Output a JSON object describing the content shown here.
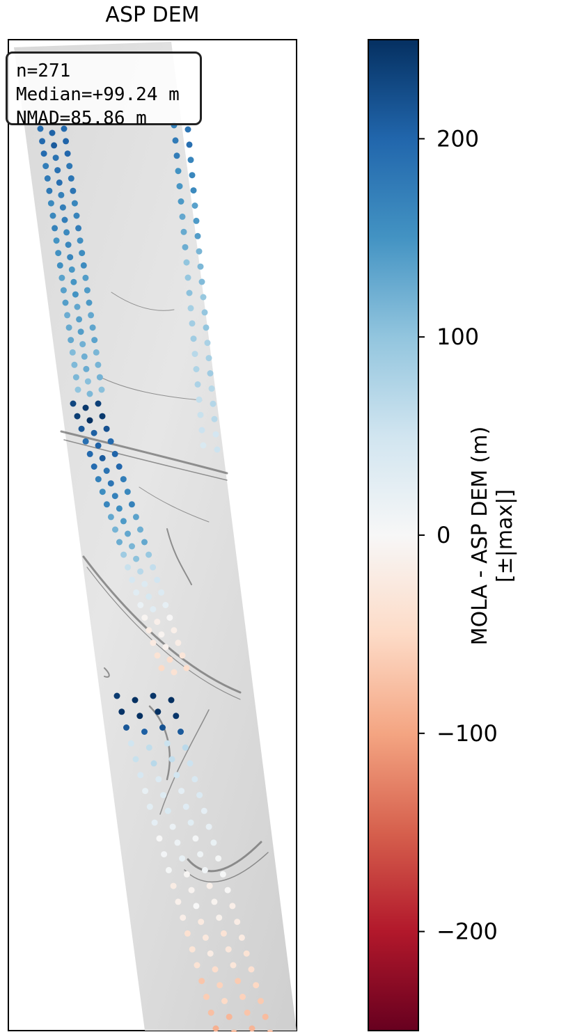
{
  "title": "ASP DEM",
  "stats": {
    "n_line": "n=271",
    "median_line": "Median=+99.24 m",
    "nmad_line": "NMAD=85.86 m"
  },
  "colorbar": {
    "label_line1": "MOLA - ASP DEM (m)",
    "label_line2": "[±|max|]",
    "min": -250,
    "max": 250,
    "ticks": [
      200,
      100,
      0,
      -100,
      -200
    ],
    "tick_labels": [
      "200",
      "100",
      "0",
      "−100",
      "−200"
    ],
    "colormap": "RdBu",
    "colors": [
      "#67001f",
      "#b2182b",
      "#d6604d",
      "#f4a582",
      "#fddbc7",
      "#f7f7f7",
      "#d1e5f0",
      "#92c5de",
      "#4393c3",
      "#2166ac",
      "#053061"
    ]
  },
  "chart_data": {
    "type": "scatter",
    "title": "ASP DEM",
    "background": "grayscale hillshade of a tilted DEM strip",
    "color_scale": "RdBu diverging, -250 to 250 m",
    "n": 271,
    "median_m": 99.24,
    "nmad_m": 85.86,
    "value_groups": [
      {
        "name": "upper left track",
        "values": [
          200,
          190,
          185,
          180,
          175,
          170,
          165,
          160,
          155,
          150,
          145,
          140,
          135,
          130,
          125,
          120,
          115,
          110
        ]
      },
      {
        "name": "upper right track",
        "values": [
          180,
          170,
          160,
          150,
          140,
          130,
          120,
          110,
          100,
          95,
          90,
          85,
          80,
          75,
          70,
          60,
          50
        ]
      },
      {
        "name": "middle band",
        "values": [
          240,
          210,
          200,
          190,
          180,
          160,
          140,
          120,
          100,
          60,
          40,
          20,
          -10,
          -20,
          -40
        ]
      },
      {
        "name": "lower strip",
        "values": [
          250,
          210,
          60,
          40,
          30,
          20,
          10,
          0,
          -10,
          -20,
          -30,
          -40,
          -60,
          -80
        ]
      }
    ]
  }
}
